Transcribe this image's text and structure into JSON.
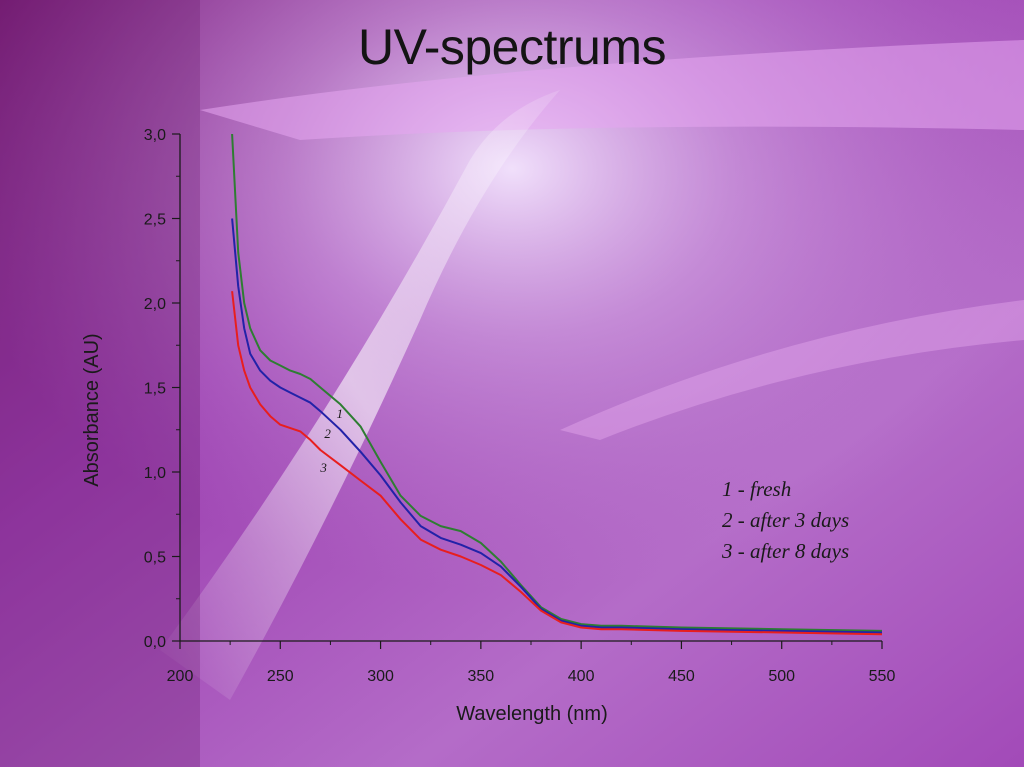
{
  "slide": {
    "title": "UV-spectrums"
  },
  "chart_data": {
    "type": "line",
    "title": "",
    "xlabel": "Wavelength (nm)",
    "ylabel": "Absorbance (AU)",
    "xlim": [
      200,
      550
    ],
    "ylim": [
      0,
      3.0
    ],
    "x_ticks": [
      "200",
      "250",
      "300",
      "350",
      "400",
      "450",
      "500",
      "550"
    ],
    "y_ticks": [
      "0,0",
      "0,5",
      "1,0",
      "1,5",
      "2,0",
      "2,5",
      "3,0"
    ],
    "grid": false,
    "legend_position": "right",
    "legend_entries": [
      "1 - fresh",
      "2 - after 3 days",
      "3 - after 8 days"
    ],
    "series": [
      {
        "name": "1 - fresh",
        "label": "1",
        "color": "#2e7d32",
        "x": [
          226,
          229,
          232,
          235,
          240,
          245,
          250,
          255,
          260,
          265,
          270,
          280,
          290,
          300,
          310,
          320,
          330,
          340,
          350,
          360,
          370,
          380,
          390,
          400,
          410,
          420,
          450,
          500,
          550
        ],
        "y": [
          3.0,
          2.3,
          2.0,
          1.85,
          1.72,
          1.66,
          1.63,
          1.6,
          1.58,
          1.55,
          1.5,
          1.4,
          1.27,
          1.06,
          0.86,
          0.74,
          0.68,
          0.65,
          0.58,
          0.47,
          0.33,
          0.2,
          0.13,
          0.1,
          0.09,
          0.09,
          0.08,
          0.07,
          0.06
        ]
      },
      {
        "name": "2 - after 3 days",
        "label": "2",
        "color": "#2222a8",
        "x": [
          226,
          229,
          232,
          235,
          240,
          245,
          250,
          255,
          260,
          265,
          270,
          280,
          290,
          300,
          310,
          320,
          330,
          340,
          350,
          360,
          370,
          380,
          390,
          400,
          410,
          420,
          450,
          500,
          550
        ],
        "y": [
          2.5,
          2.1,
          1.85,
          1.7,
          1.6,
          1.54,
          1.5,
          1.47,
          1.44,
          1.41,
          1.36,
          1.25,
          1.12,
          0.98,
          0.82,
          0.68,
          0.61,
          0.57,
          0.52,
          0.44,
          0.32,
          0.19,
          0.12,
          0.09,
          0.08,
          0.08,
          0.07,
          0.06,
          0.05
        ]
      },
      {
        "name": "3 - after 8 days",
        "label": "3",
        "color": "#e81e1e",
        "x": [
          226,
          229,
          232,
          235,
          240,
          245,
          250,
          255,
          260,
          265,
          270,
          280,
          290,
          300,
          310,
          320,
          330,
          340,
          350,
          360,
          370,
          380,
          390,
          400,
          410,
          420,
          450,
          500,
          550
        ],
        "y": [
          2.07,
          1.75,
          1.6,
          1.5,
          1.4,
          1.33,
          1.28,
          1.26,
          1.24,
          1.19,
          1.13,
          1.04,
          0.95,
          0.86,
          0.72,
          0.6,
          0.54,
          0.5,
          0.45,
          0.39,
          0.29,
          0.18,
          0.11,
          0.08,
          0.07,
          0.07,
          0.06,
          0.05,
          0.04
        ]
      }
    ]
  }
}
